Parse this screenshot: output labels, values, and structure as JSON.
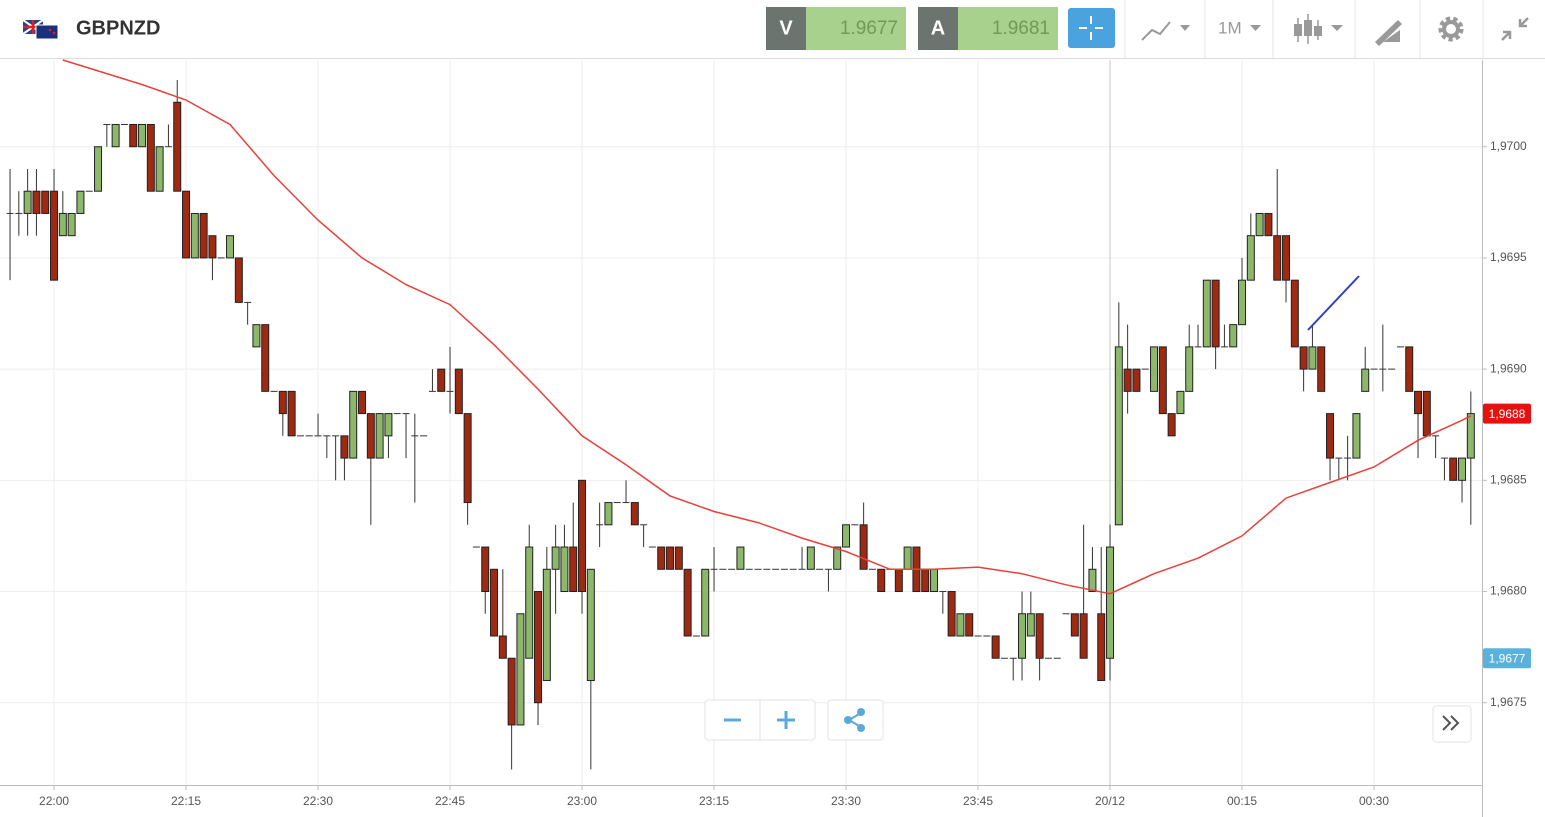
{
  "toolbar": {
    "symbol": "GBPNZD",
    "sell_label": "V",
    "sell_price": "1.9677",
    "buy_label": "A",
    "buy_price": "1.9681",
    "timeframe": "1M"
  },
  "chart_data": {
    "type": "candlestick",
    "up_color": "#8db86b",
    "down_color": "#9e2a12",
    "ylim": [
      1.96713,
      1.97039
    ],
    "xlim": [
      -1.14,
      167.27
    ],
    "grid": true,
    "yticks": [
      {
        "value": 1.9675,
        "label": "1,9675"
      },
      {
        "value": 1.968,
        "label": "1,9680"
      },
      {
        "value": 1.9685,
        "label": "1,9685"
      },
      {
        "value": 1.969,
        "label": "1,9690"
      },
      {
        "value": 1.9695,
        "label": "1,9695"
      },
      {
        "value": 1.97,
        "label": "1,9700"
      }
    ],
    "xticks": [
      {
        "value": 5,
        "label": "22:00"
      },
      {
        "value": 20,
        "label": "22:15"
      },
      {
        "value": 35,
        "label": "22:30"
      },
      {
        "value": 50,
        "label": "22:45"
      },
      {
        "value": 65,
        "label": "23:00"
      },
      {
        "value": 80,
        "label": "23:15"
      },
      {
        "value": 95,
        "label": "23:30"
      },
      {
        "value": 110,
        "label": "23:45"
      },
      {
        "value": 125,
        "label": "20/12"
      },
      {
        "value": 140,
        "label": "00:15"
      },
      {
        "value": 155,
        "label": "00:30"
      }
    ],
    "ohlc": [
      [
        1.9697,
        1.9699,
        1.9694,
        1.9697
      ],
      [
        1.9697,
        1.9698,
        1.9696,
        1.9697
      ],
      [
        1.9697,
        1.9699,
        1.9696,
        1.9698
      ],
      [
        1.9698,
        1.9699,
        1.9696,
        1.9697
      ],
      [
        1.9698,
        1.9698,
        1.9697,
        1.9697
      ],
      [
        1.9698,
        1.9699,
        1.9694,
        1.9694
      ],
      [
        1.9696,
        1.9698,
        1.9696,
        1.9697
      ],
      [
        1.9696,
        1.9697,
        1.9696,
        1.9697
      ],
      [
        1.9697,
        1.9698,
        1.9697,
        1.9698
      ],
      [
        1.9698,
        1.9698,
        1.9698,
        1.9698
      ],
      [
        1.9698,
        1.97,
        1.9698,
        1.97
      ],
      [
        1.9701,
        1.9701,
        1.97,
        1.9701
      ],
      [
        1.97,
        1.9701,
        1.97,
        1.9701
      ],
      [
        1.9701,
        1.9701,
        1.9701,
        1.9701
      ],
      [
        1.9701,
        1.9701,
        1.97,
        1.97
      ],
      [
        1.97,
        1.9701,
        1.97,
        1.9701
      ],
      [
        1.9701,
        1.9701,
        1.9698,
        1.9698
      ],
      [
        1.9698,
        1.97,
        1.9698,
        1.97
      ],
      [
        1.97,
        1.9701,
        1.97,
        1.97
      ],
      [
        1.9702,
        1.9703,
        1.9698,
        1.9698
      ],
      [
        1.9698,
        1.9698,
        1.9695,
        1.9695
      ],
      [
        1.9695,
        1.9697,
        1.9695,
        1.9697
      ],
      [
        1.9697,
        1.9697,
        1.9695,
        1.9695
      ],
      [
        1.9696,
        1.9696,
        1.9694,
        1.9695
      ],
      [
        1.9695,
        1.9695,
        1.9695,
        1.9695
      ],
      [
        1.9695,
        1.9696,
        1.9695,
        1.9696
      ],
      [
        1.9695,
        1.9695,
        1.9693,
        1.9693
      ],
      [
        1.9693,
        1.9693,
        1.9692,
        1.9693
      ],
      [
        1.9691,
        1.9692,
        1.9691,
        1.9692
      ],
      [
        1.9692,
        1.9692,
        1.9689,
        1.9689
      ],
      [
        1.9689,
        1.9689,
        1.9689,
        1.9689
      ],
      [
        1.9689,
        1.9689,
        1.9687,
        1.9688
      ],
      [
        1.9689,
        1.9689,
        1.9687,
        1.9687
      ],
      [
        1.9687,
        1.9687,
        1.9687,
        1.9687
      ],
      [
        1.9687,
        1.9687,
        1.9687,
        1.9687
      ],
      [
        1.9687,
        1.9688,
        1.9687,
        1.9687
      ],
      [
        1.9687,
        1.9687,
        1.9686,
        1.9687
      ],
      [
        1.9687,
        1.9687,
        1.9685,
        1.9687
      ],
      [
        1.9687,
        1.9687,
        1.9685,
        1.9686
      ],
      [
        1.9686,
        1.9689,
        1.9686,
        1.9689
      ],
      [
        1.9689,
        1.9689,
        1.9688,
        1.9688
      ],
      [
        1.9688,
        1.9688,
        1.9683,
        1.9686
      ],
      [
        1.9686,
        1.9688,
        1.9686,
        1.9688
      ],
      [
        1.9687,
        1.9688,
        1.9686,
        1.9688
      ],
      [
        1.9688,
        1.9688,
        1.9688,
        1.9688
      ],
      [
        1.9688,
        1.9688,
        1.9686,
        1.9688
      ],
      [
        1.9687,
        1.9688,
        1.9684,
        1.9687
      ],
      [
        1.9687,
        1.9687,
        1.9687,
        1.9687
      ],
      [
        1.9689,
        1.969,
        1.9689,
        1.9689
      ],
      [
        1.969,
        1.969,
        1.9689,
        1.9689
      ],
      [
        1.9689,
        1.9691,
        1.9688,
        1.9689
      ],
      [
        1.969,
        1.969,
        1.9688,
        1.9688
      ],
      [
        1.9688,
        1.9688,
        1.9683,
        1.9684
      ],
      [
        1.9682,
        1.9682,
        1.9682,
        1.9682
      ],
      [
        1.9682,
        1.9682,
        1.9679,
        1.968
      ],
      [
        1.9681,
        1.9681,
        1.9678,
        1.9678
      ],
      [
        1.9678,
        1.9681,
        1.9677,
        1.9677
      ],
      [
        1.9677,
        1.9677,
        1.9672,
        1.9674
      ],
      [
        1.9674,
        1.9679,
        1.9674,
        1.9679
      ],
      [
        1.9677,
        1.9683,
        1.9677,
        1.9682
      ],
      [
        1.968,
        1.968,
        1.9674,
        1.9675
      ],
      [
        1.9676,
        1.9682,
        1.9676,
        1.9681
      ],
      [
        1.9681,
        1.9683,
        1.9679,
        1.9682
      ],
      [
        1.968,
        1.9683,
        1.968,
        1.9682
      ],
      [
        1.9682,
        1.9684,
        1.968,
        1.968
      ],
      [
        1.9685,
        1.9685,
        1.9679,
        1.968
      ],
      [
        1.9676,
        1.9681,
        1.9672,
        1.9681
      ],
      [
        1.9683,
        1.9684,
        1.9682,
        1.9683
      ],
      [
        1.9683,
        1.9684,
        1.9683,
        1.9684
      ],
      [
        1.9684,
        1.9684,
        1.9684,
        1.9684
      ],
      [
        1.9684,
        1.9685,
        1.9684,
        1.9684
      ],
      [
        1.9684,
        1.9684,
        1.9683,
        1.9683
      ],
      [
        1.9683,
        1.9683,
        1.9682,
        1.9683
      ],
      [
        1.9682,
        1.9682,
        1.9682,
        1.9682
      ],
      [
        1.9682,
        1.9682,
        1.9681,
        1.9681
      ],
      [
        1.9682,
        1.9682,
        1.9681,
        1.9681
      ],
      [
        1.9682,
        1.9682,
        1.9681,
        1.9681
      ],
      [
        1.9681,
        1.9681,
        1.9678,
        1.9678
      ],
      [
        1.9678,
        1.9678,
        1.9678,
        1.9678
      ],
      [
        1.9678,
        1.9681,
        1.9678,
        1.9681
      ],
      [
        1.9681,
        1.9682,
        1.968,
        1.9681
      ],
      [
        1.9681,
        1.9681,
        1.9681,
        1.9681
      ],
      [
        1.9681,
        1.9681,
        1.9681,
        1.9681
      ],
      [
        1.9681,
        1.9682,
        1.9681,
        1.9682
      ],
      [
        1.9681,
        1.9681,
        1.9681,
        1.9681
      ],
      [
        1.9681,
        1.9681,
        1.9681,
        1.9681
      ],
      [
        1.9681,
        1.9681,
        1.9681,
        1.9681
      ],
      [
        1.9681,
        1.9681,
        1.9681,
        1.9681
      ],
      [
        1.9681,
        1.9681,
        1.9681,
        1.9681
      ],
      [
        1.9681,
        1.9681,
        1.9681,
        1.9681
      ],
      [
        1.9681,
        1.9682,
        1.9681,
        1.9681
      ],
      [
        1.9681,
        1.9682,
        1.9681,
        1.9682
      ],
      [
        1.9681,
        1.9681,
        1.9681,
        1.9681
      ],
      [
        1.9681,
        1.9681,
        1.968,
        1.9681
      ],
      [
        1.9681,
        1.9682,
        1.9681,
        1.9682
      ],
      [
        1.9682,
        1.9683,
        1.9682,
        1.9683
      ],
      [
        1.9683,
        1.9683,
        1.9683,
        1.9683
      ],
      [
        1.9683,
        1.9684,
        1.9681,
        1.9681
      ],
      [
        1.9681,
        1.9681,
        1.9681,
        1.9681
      ],
      [
        1.9681,
        1.9681,
        1.968,
        1.968
      ],
      [
        1.9681,
        1.9681,
        1.9681,
        1.9681
      ],
      [
        1.9681,
        1.9681,
        1.968,
        1.968
      ],
      [
        1.9681,
        1.9682,
        1.9681,
        1.9682
      ],
      [
        1.9682,
        1.9682,
        1.968,
        1.968
      ],
      [
        1.9681,
        1.9681,
        1.968,
        1.968
      ],
      [
        1.968,
        1.9681,
        1.968,
        1.9681
      ],
      [
        1.968,
        1.968,
        1.9679,
        1.968
      ],
      [
        1.968,
        1.968,
        1.9678,
        1.9678
      ],
      [
        1.9678,
        1.9679,
        1.9678,
        1.9679
      ],
      [
        1.9679,
        1.9679,
        1.9678,
        1.9678
      ],
      [
        1.9678,
        1.9678,
        1.9678,
        1.9678
      ],
      [
        1.9678,
        1.9678,
        1.9678,
        1.9678
      ],
      [
        1.9678,
        1.9678,
        1.9677,
        1.9677
      ],
      [
        1.9677,
        1.9677,
        1.9677,
        1.9677
      ],
      [
        1.9677,
        1.9677,
        1.9676,
        1.9677
      ],
      [
        1.9677,
        1.968,
        1.9676,
        1.9679
      ],
      [
        1.9678,
        1.968,
        1.9678,
        1.9679
      ],
      [
        1.9679,
        1.9679,
        1.9676,
        1.9677
      ],
      [
        1.9677,
        1.9677,
        1.9677,
        1.9677
      ],
      [
        1.9677,
        1.9677,
        1.9677,
        1.9677
      ],
      [
        1.9679,
        1.9679,
        1.9679,
        1.9679
      ],
      [
        1.9679,
        1.9679,
        1.9678,
        1.9678
      ],
      [
        1.9679,
        1.9683,
        1.9677,
        1.9677
      ],
      [
        1.968,
        1.9682,
        1.968,
        1.9681
      ],
      [
        1.9679,
        1.9682,
        1.9676,
        1.9676
      ],
      [
        1.9677,
        1.9683,
        1.9676,
        1.9682
      ],
      [
        1.9683,
        1.9693,
        1.9683,
        1.9691
      ],
      [
        1.969,
        1.9692,
        1.9688,
        1.9689
      ],
      [
        1.969,
        1.969,
        1.9689,
        1.9689
      ],
      [
        1.969,
        1.969,
        1.969,
        1.969
      ],
      [
        1.9689,
        1.9691,
        1.9689,
        1.9691
      ],
      [
        1.9691,
        1.9691,
        1.9688,
        1.9688
      ],
      [
        1.9688,
        1.9688,
        1.9687,
        1.9687
      ],
      [
        1.9688,
        1.9689,
        1.9688,
        1.9689
      ],
      [
        1.9689,
        1.9692,
        1.9689,
        1.9691
      ],
      [
        1.9691,
        1.9692,
        1.9691,
        1.9691
      ],
      [
        1.9691,
        1.9694,
        1.9691,
        1.9694
      ],
      [
        1.9694,
        1.9694,
        1.969,
        1.9691
      ],
      [
        1.9691,
        1.9692,
        1.9691,
        1.9691
      ],
      [
        1.9691,
        1.9692,
        1.9691,
        1.9692
      ],
      [
        1.9692,
        1.9695,
        1.9692,
        1.9694
      ],
      [
        1.9694,
        1.9697,
        1.9694,
        1.9696
      ],
      [
        1.9696,
        1.9697,
        1.9696,
        1.9697
      ],
      [
        1.9697,
        1.9697,
        1.9696,
        1.9696
      ],
      [
        1.9696,
        1.9699,
        1.9694,
        1.9694
      ],
      [
        1.9696,
        1.9696,
        1.9693,
        1.9694
      ],
      [
        1.9694,
        1.9694,
        1.9691,
        1.9691
      ],
      [
        1.9691,
        1.9691,
        1.9689,
        1.969
      ],
      [
        1.969,
        1.9692,
        1.969,
        1.9691
      ],
      [
        1.9691,
        1.9691,
        1.9689,
        1.9689
      ],
      [
        1.9688,
        1.9688,
        1.9685,
        1.9686
      ],
      [
        1.9686,
        1.9686,
        1.9685,
        1.9686
      ],
      [
        1.9686,
        1.9687,
        1.9685,
        1.9686
      ],
      [
        1.9686,
        1.9688,
        1.9686,
        1.9688
      ],
      [
        1.9689,
        1.9691,
        1.9689,
        1.969
      ],
      [
        1.969,
        1.969,
        1.969,
        1.969
      ],
      [
        1.969,
        1.9692,
        1.9689,
        1.969
      ],
      [
        1.969,
        1.969,
        1.969,
        1.969
      ],
      [
        1.9691,
        1.9691,
        1.9691,
        1.9691
      ],
      [
        1.9691,
        1.9691,
        1.9689,
        1.9689
      ],
      [
        1.9689,
        1.9689,
        1.9686,
        1.9688
      ],
      [
        1.9689,
        1.9689,
        1.9687,
        1.9687
      ],
      [
        1.9687,
        1.9687,
        1.9686,
        1.9687
      ],
      [
        1.9686,
        1.9686,
        1.9685,
        1.9686
      ],
      [
        1.9686,
        1.9686,
        1.9685,
        1.9685
      ],
      [
        1.9685,
        1.9686,
        1.9684,
        1.9686
      ],
      [
        1.9686,
        1.9689,
        1.9683,
        1.9688
      ]
    ],
    "ma": {
      "color": "#e8403a",
      "x": [
        6,
        15,
        20,
        25,
        30,
        35,
        40,
        45,
        50,
        55,
        60,
        65,
        70,
        75,
        80,
        85,
        90,
        95,
        100,
        105,
        110,
        115,
        120,
        125,
        130,
        135,
        140,
        145,
        150,
        155,
        160,
        165,
        166
      ],
      "values": [
        1.97039,
        1.97028,
        1.97021,
        1.9701,
        1.96987,
        1.96967,
        1.9695,
        1.96938,
        1.96929,
        1.96911,
        1.96891,
        1.9687,
        1.96857,
        1.96843,
        1.96836,
        1.96831,
        1.96824,
        1.96818,
        1.9681,
        1.9681,
        1.96811,
        1.96808,
        1.96803,
        1.96799,
        1.96808,
        1.96815,
        1.96825,
        1.96842,
        1.96849,
        1.96856,
        1.96868,
        1.96877,
        1.96879
      ]
    },
    "price_tags": [
      {
        "value": 1.9688,
        "label": "1,9688",
        "color": "#e8110f"
      },
      {
        "value": 1.9677,
        "label": "1,9677",
        "color": "#5ab2dc"
      }
    ]
  }
}
